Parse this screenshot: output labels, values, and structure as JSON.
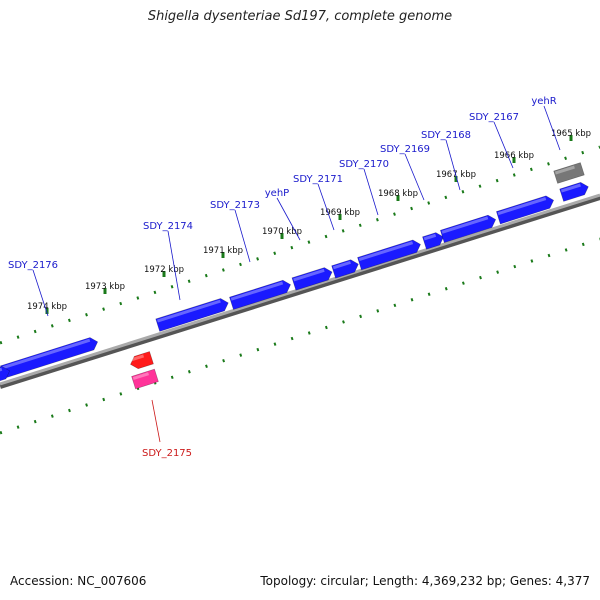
{
  "title": "Shigella dysenteriae Sd197, complete genome",
  "footer": {
    "accession": "Accession: NC_007606",
    "summary": "Topology: circular; Length: 4,369,232 bp; Genes: 4,377"
  },
  "colors": {
    "forward_gene": "#1a1aff",
    "reverse_gene": "#ff1a1a",
    "pink_feature": "#ff3399",
    "gray_feature": "#777777",
    "backbone": "#888888",
    "ticks": "#1a7a1a",
    "forward_label": "#1a1acc",
    "reverse_label": "#cc1a1a"
  },
  "scale_labels": [
    "1974 kbp",
    "1973 kbp",
    "1972 kbp",
    "1971 kbp",
    "1970 kbp",
    "1969 kbp",
    "1968 kbp",
    "1967 kbp",
    "1966 kbp",
    "1965 kbp"
  ],
  "forward_gene_labels": [
    "SDY_2176",
    "SDY_2174",
    "SDY_2173",
    "yehP",
    "SDY_2171",
    "SDY_2170",
    "SDY_2169",
    "SDY_2168",
    "SDY_2167",
    "yehR"
  ],
  "reverse_gene_labels": [
    "SDY_2175"
  ]
}
